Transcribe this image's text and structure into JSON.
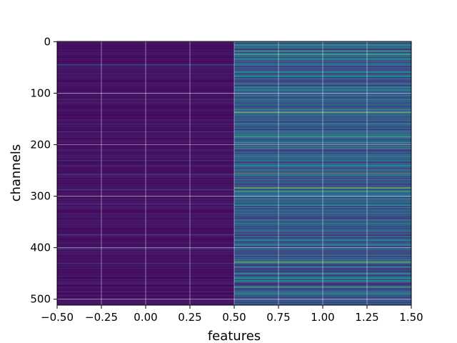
{
  "chart_data": {
    "type": "heatmap",
    "title": "",
    "xlabel": "features",
    "ylabel": "channels",
    "xlim": [
      -0.5,
      1.5
    ],
    "ylim": [
      511.5,
      -0.5
    ],
    "y_inverted": true,
    "x_ticks": [
      -0.5,
      -0.25,
      0.0,
      0.25,
      0.5,
      0.75,
      1.0,
      1.25,
      1.5
    ],
    "x_tick_labels": [
      "−0.50",
      "−0.25",
      "0.00",
      "0.25",
      "0.50",
      "0.75",
      "1.00",
      "1.25",
      "1.50"
    ],
    "y_ticks": [
      0,
      100,
      200,
      300,
      400,
      500
    ],
    "y_tick_labels": [
      "0",
      "100",
      "200",
      "300",
      "400",
      "500"
    ],
    "grid": true,
    "colormap": "viridis",
    "n_rows": 512,
    "columns": [
      {
        "feature_index": 0,
        "base_level": 0.05,
        "highlights": [
          {
            "row": 45,
            "value": 0.4
          },
          {
            "row": 113,
            "value": 0.25
          },
          {
            "row": 175,
            "value": 0.2
          },
          {
            "row": 230,
            "value": 0.18
          },
          {
            "row": 258,
            "value": 0.2
          },
          {
            "row": 287,
            "value": 0.22
          },
          {
            "row": 315,
            "value": 0.18
          },
          {
            "row": 375,
            "value": 0.25
          },
          {
            "row": 402,
            "value": 0.35
          },
          {
            "row": 430,
            "value": 0.2
          },
          {
            "row": 470,
            "value": 0.2
          }
        ]
      },
      {
        "feature_index": 1,
        "base_level": 0.25,
        "highlights": [
          {
            "row": 5,
            "value": 0.6
          },
          {
            "row": 12,
            "value": 0.55
          },
          {
            "row": 18,
            "value": 0.75
          },
          {
            "row": 25,
            "value": 0.7
          },
          {
            "row": 32,
            "value": 0.5
          },
          {
            "row": 58,
            "value": 0.55
          },
          {
            "row": 68,
            "value": 0.5
          },
          {
            "row": 88,
            "value": 0.55
          },
          {
            "row": 105,
            "value": 0.5
          },
          {
            "row": 137,
            "value": 0.95
          },
          {
            "row": 160,
            "value": 0.45
          },
          {
            "row": 185,
            "value": 0.7
          },
          {
            "row": 196,
            "value": 0.6
          },
          {
            "row": 207,
            "value": 0.6
          },
          {
            "row": 222,
            "value": 0.5
          },
          {
            "row": 240,
            "value": 0.55
          },
          {
            "row": 255,
            "value": 0.8
          },
          {
            "row": 270,
            "value": 0.45
          },
          {
            "row": 284,
            "value": 0.9
          },
          {
            "row": 290,
            "value": 0.7
          },
          {
            "row": 305,
            "value": 0.5
          },
          {
            "row": 318,
            "value": 0.55
          },
          {
            "row": 335,
            "value": 0.45
          },
          {
            "row": 350,
            "value": 0.5
          },
          {
            "row": 378,
            "value": 0.6
          },
          {
            "row": 395,
            "value": 0.5
          },
          {
            "row": 428,
            "value": 0.88
          },
          {
            "row": 438,
            "value": 0.6
          },
          {
            "row": 450,
            "value": 0.5
          },
          {
            "row": 465,
            "value": 0.5
          },
          {
            "row": 476,
            "value": 0.7
          },
          {
            "row": 488,
            "value": 0.55
          },
          {
            "row": 500,
            "value": 0.5
          }
        ]
      }
    ]
  }
}
